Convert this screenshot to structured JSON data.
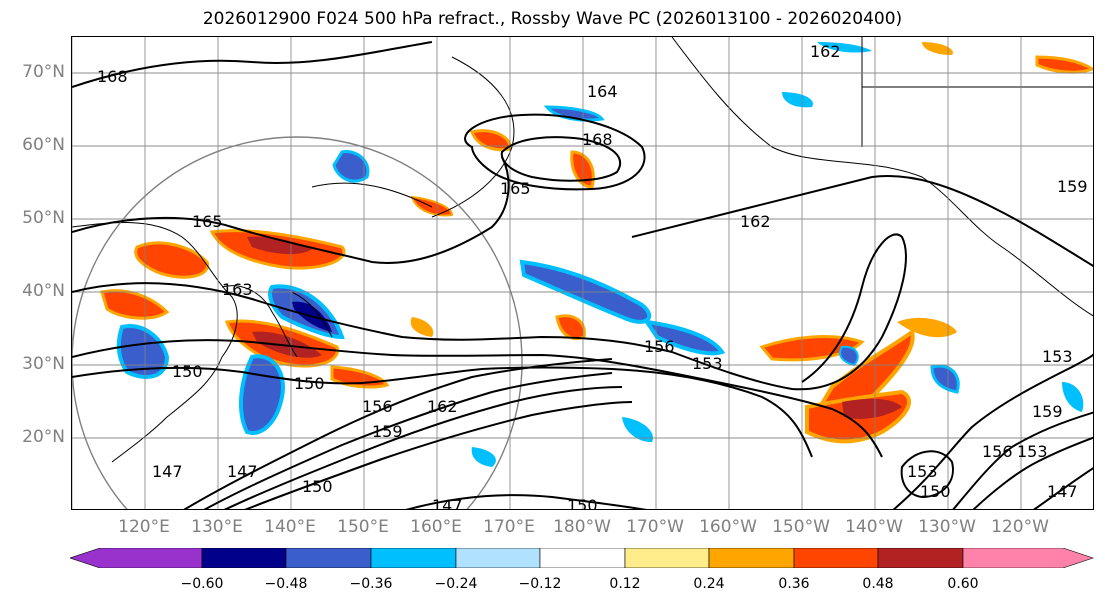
{
  "title": "2026012900 F024 500 hPa refract., Rossby Wave PC (2026013100 - 2026020400)",
  "lat_labels": [
    "70°N",
    "60°N",
    "50°N",
    "40°N",
    "30°N",
    "20°N"
  ],
  "lon_labels": [
    "120°E",
    "130°E",
    "140°E",
    "150°E",
    "160°E",
    "170°E",
    "180°W",
    "170°W",
    "160°W",
    "150°W",
    "140°W",
    "130°W",
    "120°W"
  ],
  "contour_labels": [
    "168",
    "162",
    "164",
    "168",
    "165",
    "165",
    "162",
    "159",
    "163",
    "156",
    "153",
    "150",
    "162",
    "156",
    "153",
    "150",
    "147",
    "159",
    "159",
    "147",
    "150",
    "153",
    "150",
    "156",
    "153",
    "147",
    "147",
    "150"
  ],
  "colorbar": {
    "tick_labels": [
      "−0.60",
      "−0.48",
      "−0.36",
      "−0.24",
      "−0.12",
      "0.12",
      "0.24",
      "0.36",
      "0.48",
      "0.60"
    ],
    "colors": [
      "#9932CC",
      "#00008B",
      "#3A5FCD",
      "#00BFFF",
      "#B0E2FF",
      "#FFFFFF",
      "#FFEC8B",
      "#FFA500",
      "#FF4500",
      "#B22222",
      "#FF82AB"
    ]
  },
  "colors": {
    "frame": "#000000",
    "gridline": "#808080",
    "axis_label": "#808080",
    "contour": "#000000"
  }
}
